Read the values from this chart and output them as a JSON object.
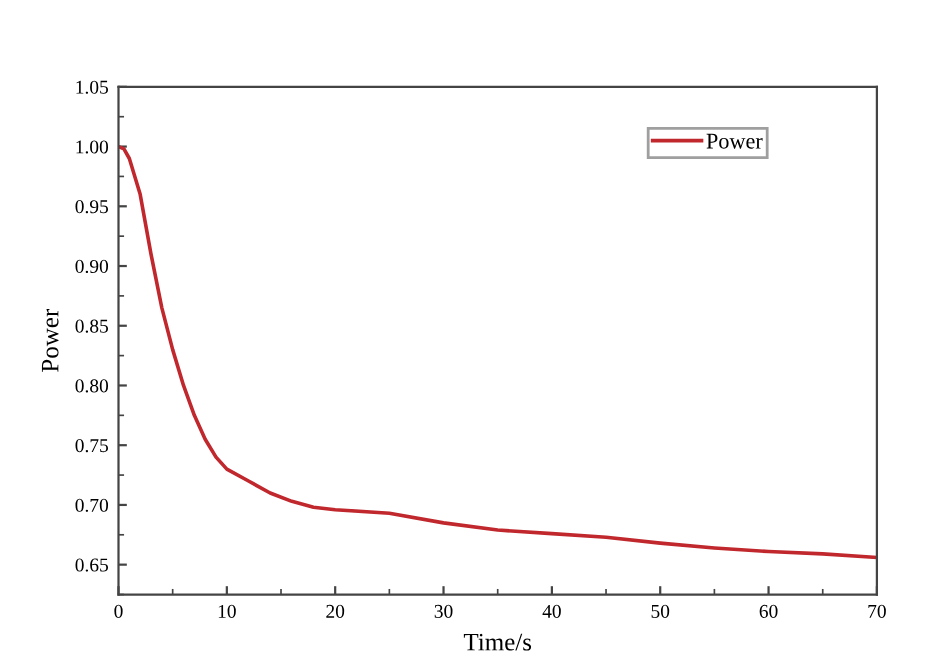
{
  "chart_data": {
    "type": "line",
    "xlabel": "Time/s",
    "ylabel": "Power",
    "xlim": [
      0,
      70
    ],
    "xticks": [
      0,
      10,
      20,
      30,
      40,
      50,
      60,
      70
    ],
    "ylim": [
      0.625,
      1.05
    ],
    "yticks": [
      {
        "value": 0.65,
        "label": "0.65"
      },
      {
        "value": 0.7,
        "label": "0.70"
      },
      {
        "value": 0.75,
        "label": "0.75"
      },
      {
        "value": 0.8,
        "label": "0.80"
      },
      {
        "value": 0.85,
        "label": "0.85"
      },
      {
        "value": 0.9,
        "label": "0.90"
      },
      {
        "value": 0.95,
        "label": "0.95"
      },
      {
        "value": 1.0,
        "label": "1.00"
      },
      {
        "value": 1.05,
        "label": "1.05"
      }
    ],
    "legend": "top right",
    "grid": false,
    "series": [
      {
        "name": "Power",
        "color": "#c0282d",
        "x": [
          0,
          0.5,
          1,
          2,
          3,
          4,
          5,
          6,
          7,
          8,
          9,
          10,
          12,
          14,
          16,
          18,
          20,
          25,
          30,
          35,
          40,
          45,
          50,
          55,
          60,
          65,
          70
        ],
        "values": [
          1.0,
          0.998,
          0.99,
          0.96,
          0.91,
          0.865,
          0.83,
          0.8,
          0.775,
          0.755,
          0.74,
          0.73,
          0.72,
          0.71,
          0.703,
          0.698,
          0.696,
          0.693,
          0.685,
          0.679,
          0.676,
          0.673,
          0.668,
          0.664,
          0.661,
          0.659,
          0.656
        ]
      }
    ]
  }
}
